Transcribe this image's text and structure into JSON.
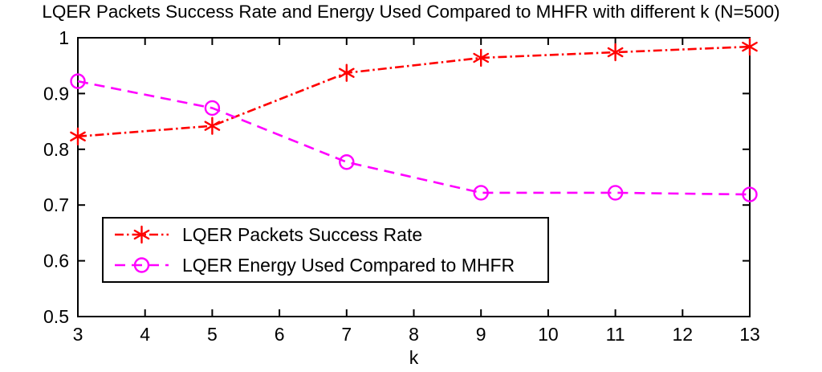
{
  "title": "LQER Packets Success Rate and Energy Used Compared to MHFR with different k (N=500)",
  "chart_data": {
    "type": "line",
    "x": [
      3,
      5,
      7,
      9,
      11,
      13
    ],
    "series": [
      {
        "name": "LQER Packets Success Rate",
        "color": "#ff0000",
        "line_style": "dash-dot",
        "marker": "asterisk",
        "values": [
          0.823,
          0.842,
          0.937,
          0.964,
          0.974,
          0.984
        ]
      },
      {
        "name": "LQER Energy Used Compared to MHFR",
        "color": "#ff00ff",
        "line_style": "dashed",
        "marker": "circle",
        "values": [
          0.922,
          0.874,
          0.777,
          0.722,
          0.722,
          0.719
        ]
      }
    ],
    "xlabel": "k",
    "ylabel": "",
    "xlim": [
      3,
      13
    ],
    "ylim": [
      0.5,
      1
    ],
    "xticks": [
      3,
      4,
      5,
      6,
      7,
      8,
      9,
      10,
      11,
      12,
      13
    ],
    "yticks": [
      0.5,
      0.6,
      0.7,
      0.8,
      0.9,
      1
    ],
    "grid": false,
    "legend_position": "lower-left",
    "axis_color": "#000000",
    "background_color": "#ffffff"
  }
}
